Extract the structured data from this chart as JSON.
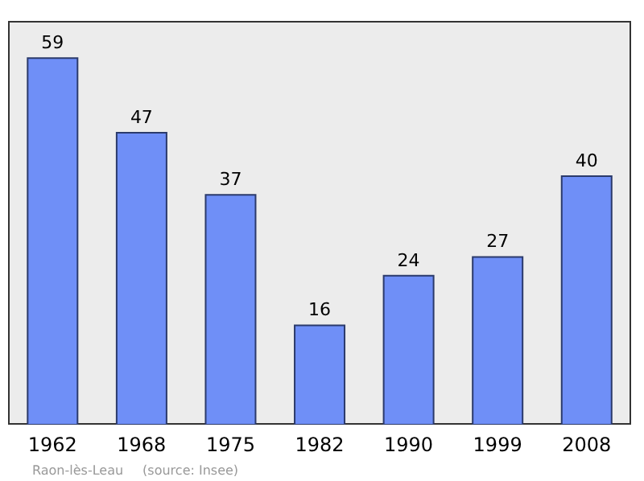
{
  "chart_data": {
    "type": "bar",
    "categories": [
      "1962",
      "1968",
      "1975",
      "1982",
      "1990",
      "1999",
      "2008"
    ],
    "values": [
      59,
      47,
      37,
      16,
      24,
      27,
      40
    ],
    "color": "#6f8ff7",
    "ylim": [
      0,
      65
    ],
    "tick_labels": "x",
    "data_labels": true,
    "grid": false,
    "annotations": [
      "Raon-lès-Leau",
      "(source: Insee)"
    ]
  }
}
